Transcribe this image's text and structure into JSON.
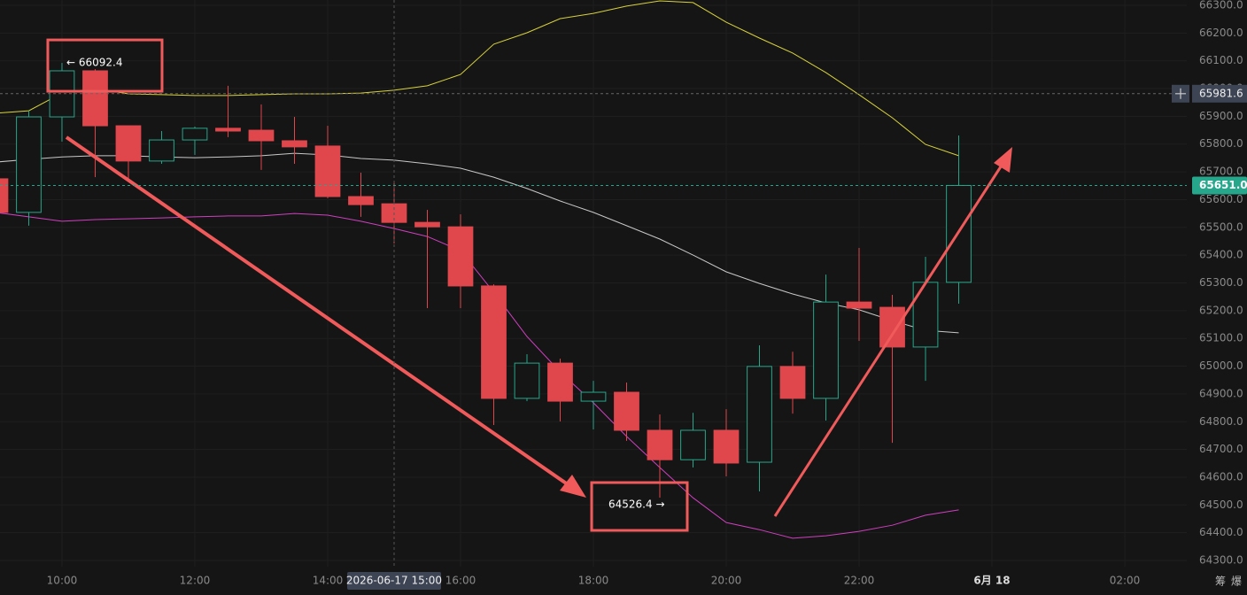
{
  "chart_data": {
    "type": "candlestick",
    "x": [
      9,
      9.5,
      10,
      10.5,
      11,
      11.5,
      12,
      12.5,
      13,
      13.5,
      14,
      14.5,
      15,
      15.5,
      16,
      16.5,
      17,
      17.5,
      18,
      18.5,
      19,
      19.5,
      20,
      20.5,
      21,
      21.5,
      22,
      22.5,
      23,
      23.5
    ],
    "open": [
      65675,
      65554,
      65898,
      66064,
      65866,
      65739,
      65815,
      65857,
      65850,
      65812,
      65793,
      65611,
      65585,
      65518,
      65502,
      65289,
      64884,
      65011,
      64874,
      64906,
      64769,
      64663,
      64769,
      64654,
      64999,
      64884,
      65231,
      65212,
      65069,
      65302
    ],
    "high": [
      65680,
      65920,
      66092.4,
      66070,
      65866,
      65847,
      65863,
      66010,
      65943,
      65898,
      65866,
      65697,
      65665,
      65563,
      65547,
      65295,
      65043,
      65027,
      64947,
      64941,
      64826,
      64832,
      64845,
      65075,
      65052,
      65330,
      65426,
      65257,
      65394,
      65831
    ],
    "low": [
      65550,
      65506,
      65809,
      65681,
      65665,
      65729,
      65761,
      65825,
      65707,
      65729,
      65605,
      65538,
      65442,
      65209,
      65209,
      64788,
      64874,
      64801,
      64772,
      64731,
      64526.4,
      64635,
      64603,
      64549,
      64829,
      64804,
      65091,
      64724,
      64947,
      65225
    ],
    "close": [
      65554,
      65898,
      66064,
      65866,
      65739,
      65815,
      65857,
      65847,
      65812,
      65790,
      65611,
      65582,
      65518,
      65502,
      65289,
      64884,
      65011,
      64874,
      64906,
      64769,
      64663,
      64769,
      64651,
      64999,
      64884,
      65231,
      65209,
      65069,
      65302,
      65651.0
    ],
    "up_color": "#26a68a",
    "down_color": "#e0474c",
    "bands": [
      {
        "color": "#d8d23a",
        "values": [
          65911,
          65920,
          65984,
          66000,
          65981,
          65978,
          65975,
          65975,
          65978,
          65981,
          65981,
          65984,
          65994,
          66010,
          66051,
          66160,
          66201,
          66252,
          66271,
          66297,
          66316,
          66310,
          66239,
          66182,
          66128,
          66058,
          65978,
          65895,
          65799,
          65758
        ]
      },
      {
        "color": "#c8c8c8",
        "values": [
          65735,
          65745,
          65754,
          65758,
          65758,
          65754,
          65751,
          65754,
          65758,
          65767,
          65761,
          65748,
          65742,
          65729,
          65713,
          65681,
          65640,
          65595,
          65554,
          65506,
          65458,
          65400,
          65340,
          65298,
          65260,
          65228,
          65203,
          65164,
          65129,
          65120
        ]
      },
      {
        "color": "#d03fc0",
        "values": [
          65554,
          65538,
          65522,
          65528,
          65531,
          65534,
          65538,
          65541,
          65541,
          65550,
          65544,
          65522,
          65496,
          65467,
          65416,
          65266,
          65107,
          64979,
          64868,
          64747,
          64635,
          64526,
          64437,
          64411,
          64380,
          64389,
          64405,
          64427,
          64463,
          64482
        ]
      }
    ],
    "xlim": [
      9.067,
      26.933
    ],
    "ylim": [
      64277.7,
      66319.1
    ],
    "xticks": [
      {
        "value": 10,
        "label": "10:00"
      },
      {
        "value": 12,
        "label": "12:00"
      },
      {
        "value": 14,
        "label": "14:00"
      },
      {
        "value": 16,
        "label": "16:00"
      },
      {
        "value": 18,
        "label": "18:00"
      },
      {
        "value": 20,
        "label": "20:00"
      },
      {
        "value": 22,
        "label": "22:00"
      },
      {
        "value": 24,
        "label": "6月 18"
      },
      {
        "value": 26,
        "label": "02:00"
      }
    ],
    "yticks": [
      {
        "value": 64300,
        "label": "64300.0"
      },
      {
        "value": 64400,
        "label": "64400.0"
      },
      {
        "value": 64500,
        "label": "64500.0"
      },
      {
        "value": 64600,
        "label": "64600.0"
      },
      {
        "value": 64700,
        "label": "64700.0"
      },
      {
        "value": 64800,
        "label": "64800.0"
      },
      {
        "value": 64900,
        "label": "64900.0"
      },
      {
        "value": 65000,
        "label": "65000.0"
      },
      {
        "value": 65100,
        "label": "65100.0"
      },
      {
        "value": 65200,
        "label": "65200.0"
      },
      {
        "value": 65300,
        "label": "65300.0"
      },
      {
        "value": 65400,
        "label": "65400.0"
      },
      {
        "value": 65500,
        "label": "65500.0"
      },
      {
        "value": 65600,
        "label": "65600.0"
      },
      {
        "value": 65700,
        "label": "65700.0"
      },
      {
        "value": 65800,
        "label": "65800.0"
      },
      {
        "value": 65900,
        "label": "65900.0"
      },
      {
        "value": 66000,
        "label": "66000.0"
      },
      {
        "value": 66100,
        "label": "66100.0"
      },
      {
        "value": 66200,
        "label": "66200.0"
      },
      {
        "value": 66300,
        "label": "66300.0"
      }
    ],
    "grid": true,
    "crosshair": {
      "x": {
        "value": 15,
        "label": "2026-06-17 15:00"
      },
      "y": 65981.6
    },
    "last_price": {
      "value": 65651.0,
      "label": "65651.0"
    },
    "annotations": [
      {
        "x": 10,
        "value": 66092.4,
        "label": "← 66092.4"
      },
      {
        "x": 19,
        "value": 64526.4,
        "label": "64526.4 →"
      }
    ],
    "toolbar": [
      "筹",
      "爆"
    ]
  }
}
